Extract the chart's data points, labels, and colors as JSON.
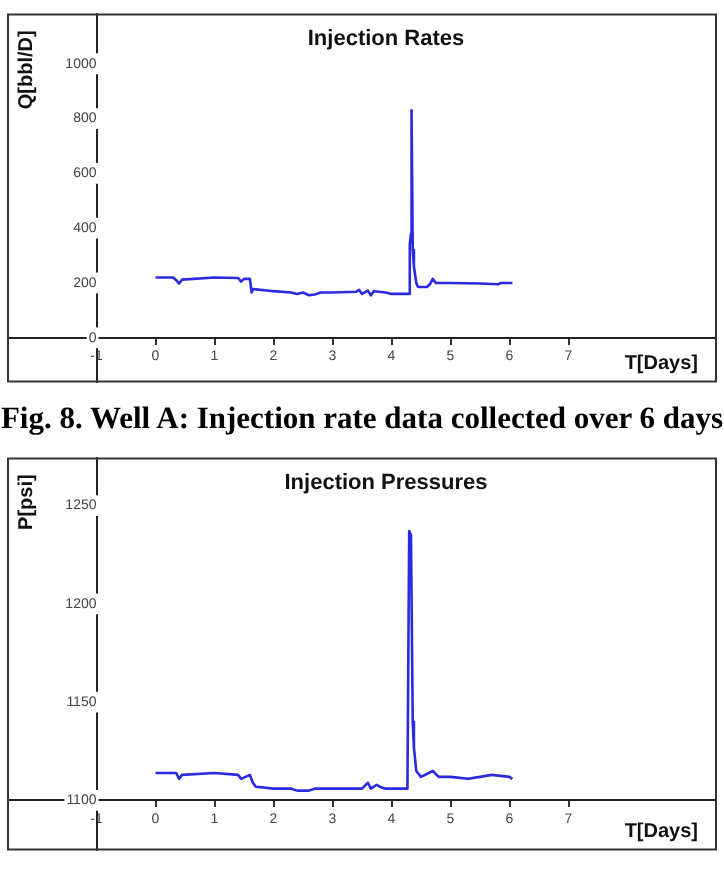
{
  "chart_data": [
    {
      "type": "line",
      "title": "Injection Rates",
      "xlabel": "T[Days]",
      "ylabel": "Q[bbl/D]",
      "annotations": [
        "Fig. 8.  Well A: Injection rate data collected over 6 days"
      ],
      "x": [
        0,
        0.3,
        0.35,
        0.4,
        0.45,
        1.0,
        1.4,
        1.45,
        1.5,
        1.6,
        1.63,
        1.65,
        2.0,
        2.3,
        2.4,
        2.5,
        2.6,
        2.7,
        2.8,
        3.0,
        3.4,
        3.45,
        3.5,
        3.6,
        3.65,
        3.7,
        3.9,
        4.0,
        4.3,
        4.31,
        4.33,
        4.34,
        4.36,
        4.38,
        4.42,
        4.45,
        4.6,
        4.65,
        4.7,
        4.75,
        5.0,
        5.5,
        5.8,
        5.85,
        6.05
      ],
      "series": [
        {
          "color": "#2a2ae0",
          "values": [
            220,
            220,
            210,
            198,
            212,
            220,
            218,
            205,
            215,
            215,
            165,
            178,
            170,
            165,
            160,
            165,
            155,
            158,
            165,
            165,
            168,
            175,
            160,
            172,
            155,
            170,
            165,
            160,
            160,
            340,
            380,
            830,
            320,
            260,
            200,
            185,
            185,
            195,
            215,
            200,
            200,
            198,
            195,
            200,
            200
          ]
        }
      ],
      "xlim": [
        -2.5,
        9.5
      ],
      "ylim": [
        -160,
        1180
      ],
      "xticks": [
        -1,
        0,
        1,
        2,
        3,
        4,
        5,
        6,
        7
      ],
      "yticks": [
        0,
        200,
        400,
        600,
        800,
        1000
      ],
      "grid": false,
      "legend": false,
      "marker": "none"
    },
    {
      "type": "line",
      "title": "Injection Pressures",
      "xlabel": "T[Days]",
      "ylabel": "P[psi]",
      "x": [
        0,
        0.35,
        0.4,
        0.45,
        1.0,
        1.4,
        1.45,
        1.6,
        1.65,
        1.7,
        2.0,
        2.3,
        2.4,
        2.6,
        2.7,
        3.0,
        3.4,
        3.5,
        3.6,
        3.65,
        3.75,
        3.8,
        3.9,
        4.27,
        4.3,
        4.33,
        4.36,
        4.38,
        4.42,
        4.5,
        4.7,
        4.8,
        5.0,
        5.3,
        5.5,
        5.7,
        6.0,
        6.05
      ],
      "series": [
        {
          "color": "#2a2ae0",
          "values": [
            1114,
            1114,
            1111,
            1113,
            1114,
            1113,
            1111,
            1113,
            1109,
            1107,
            1106,
            1106,
            1105,
            1105,
            1106,
            1106,
            1106,
            1106,
            1109,
            1106,
            1108,
            1107,
            1106,
            1106,
            1237,
            1235,
            1140,
            1127,
            1115,
            1112,
            1115,
            1112,
            1112,
            1111,
            1112,
            1113,
            1112,
            1111
          ]
        }
      ],
      "xlim": [
        -2.5,
        9.5
      ],
      "ylim": [
        1075,
        1274
      ],
      "xticks": [
        -1,
        0,
        1,
        2,
        3,
        4,
        5,
        6,
        7
      ],
      "yticks": [
        1100,
        1150,
        1200,
        1250
      ],
      "grid": false,
      "legend": false,
      "marker": "none"
    }
  ]
}
